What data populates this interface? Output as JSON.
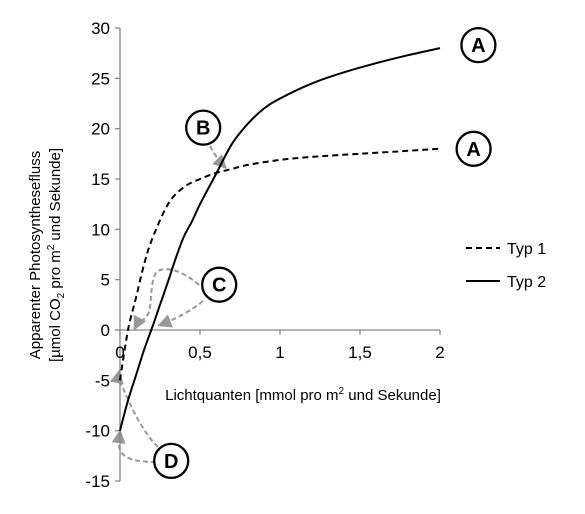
{
  "chart_data": {
    "type": "line",
    "title": "",
    "xlabel_parts": [
      "Lichtquanten [mmol pro m",
      "2",
      " und Sekunde]"
    ],
    "ylabel_line1": "Apparenter Photosynthesefluss",
    "ylabel_line2_parts": [
      "[µmol CO",
      "2",
      " pro m",
      "2",
      " und Sekunde]"
    ],
    "xlim": [
      0,
      2
    ],
    "ylim": [
      -15,
      30
    ],
    "x_ticks": [
      {
        "value": 0,
        "label": "0"
      },
      {
        "value": 0.5,
        "label": "0,5"
      },
      {
        "value": 1,
        "label": "1"
      },
      {
        "value": 1.5,
        "label": "1,5"
      },
      {
        "value": 2,
        "label": "2"
      }
    ],
    "y_ticks": [
      {
        "value": 30,
        "label": "30"
      },
      {
        "value": 25,
        "label": "25"
      },
      {
        "value": 20,
        "label": "20"
      },
      {
        "value": 15,
        "label": "15"
      },
      {
        "value": 10,
        "label": "10"
      },
      {
        "value": 5,
        "label": "5"
      },
      {
        "value": 0,
        "label": "0"
      },
      {
        "value": -5,
        "label": "-5"
      },
      {
        "value": -10,
        "label": "-10"
      },
      {
        "value": -15,
        "label": "-15"
      }
    ],
    "grid": false,
    "legend_position": "right",
    "series": [
      {
        "name": "Typ 1",
        "style": "dashed",
        "color": "#000000",
        "x": [
          0.0,
          0.05,
          0.1,
          0.15,
          0.2,
          0.3,
          0.4,
          0.5,
          0.6,
          0.7,
          0.8,
          1.0,
          1.2,
          1.5,
          1.8,
          2.0
        ],
        "y": [
          -5.0,
          0.0,
          3.2,
          6.5,
          9.0,
          12.5,
          14.2,
          15.0,
          15.6,
          16.0,
          16.4,
          16.9,
          17.2,
          17.5,
          17.8,
          18.0
        ]
      },
      {
        "name": "Typ 2",
        "style": "solid",
        "color": "#000000",
        "x": [
          0.0,
          0.05,
          0.1,
          0.15,
          0.2,
          0.25,
          0.3,
          0.35,
          0.4,
          0.45,
          0.5,
          0.6,
          0.7,
          0.8,
          0.9,
          1.0,
          1.2,
          1.4,
          1.6,
          1.8,
          2.0
        ],
        "y": [
          -10.0,
          -7.0,
          -4.5,
          -2.0,
          0.2,
          2.5,
          4.8,
          7.2,
          9.3,
          10.8,
          12.5,
          15.5,
          18.5,
          20.5,
          22.0,
          23.0,
          24.5,
          25.6,
          26.5,
          27.3,
          28.0
        ]
      }
    ],
    "markers": [
      {
        "label": "A",
        "x": 2.24,
        "y": 28.3
      },
      {
        "label": "A",
        "x": 2.21,
        "y": 18.0
      },
      {
        "label": "B",
        "x": 0.52,
        "y": 20.1
      },
      {
        "label": "C",
        "x": 0.62,
        "y": 4.5
      },
      {
        "label": "D",
        "x": 0.32,
        "y": -13.0
      }
    ],
    "annotation_color": "#999999"
  }
}
